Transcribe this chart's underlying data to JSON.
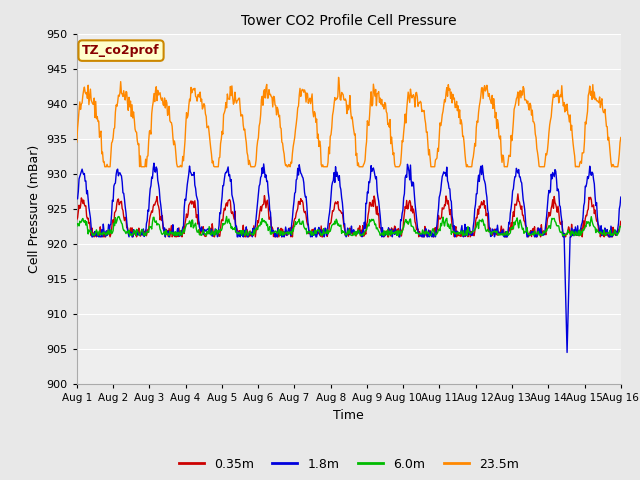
{
  "title": "Tower CO2 Profile Cell Pressure",
  "xlabel": "Time",
  "ylabel": "Cell Pressure (mBar)",
  "ylim": [
    900,
    950
  ],
  "yticks": [
    900,
    905,
    910,
    915,
    920,
    925,
    930,
    935,
    940,
    945,
    950
  ],
  "xlim_days": [
    0,
    15
  ],
  "xtick_labels": [
    "Aug 1",
    "Aug 2",
    "Aug 3",
    "Aug 4",
    "Aug 5",
    "Aug 6",
    "Aug 7",
    "Aug 8",
    "Aug 9",
    "Aug 10",
    "Aug 11",
    "Aug 12",
    "Aug 13",
    "Aug 14",
    "Aug 15",
    "Aug 16"
  ],
  "legend_labels": [
    "0.35m",
    "1.8m",
    "6.0m",
    "23.5m"
  ],
  "legend_colors": [
    "#cc0000",
    "#0000dd",
    "#00bb00",
    "#ff8800"
  ],
  "annotation_label": "TZ_co2prof",
  "annotation_color": "#880000",
  "annotation_bg": "#ffffcc",
  "annotation_edge": "#cc8800",
  "fig_bg": "#e8e8e8",
  "plot_bg": "#eeeeee",
  "grid_color": "#ffffff",
  "line_colors": [
    "#cc0000",
    "#0000dd",
    "#00bb00",
    "#ff8800"
  ]
}
